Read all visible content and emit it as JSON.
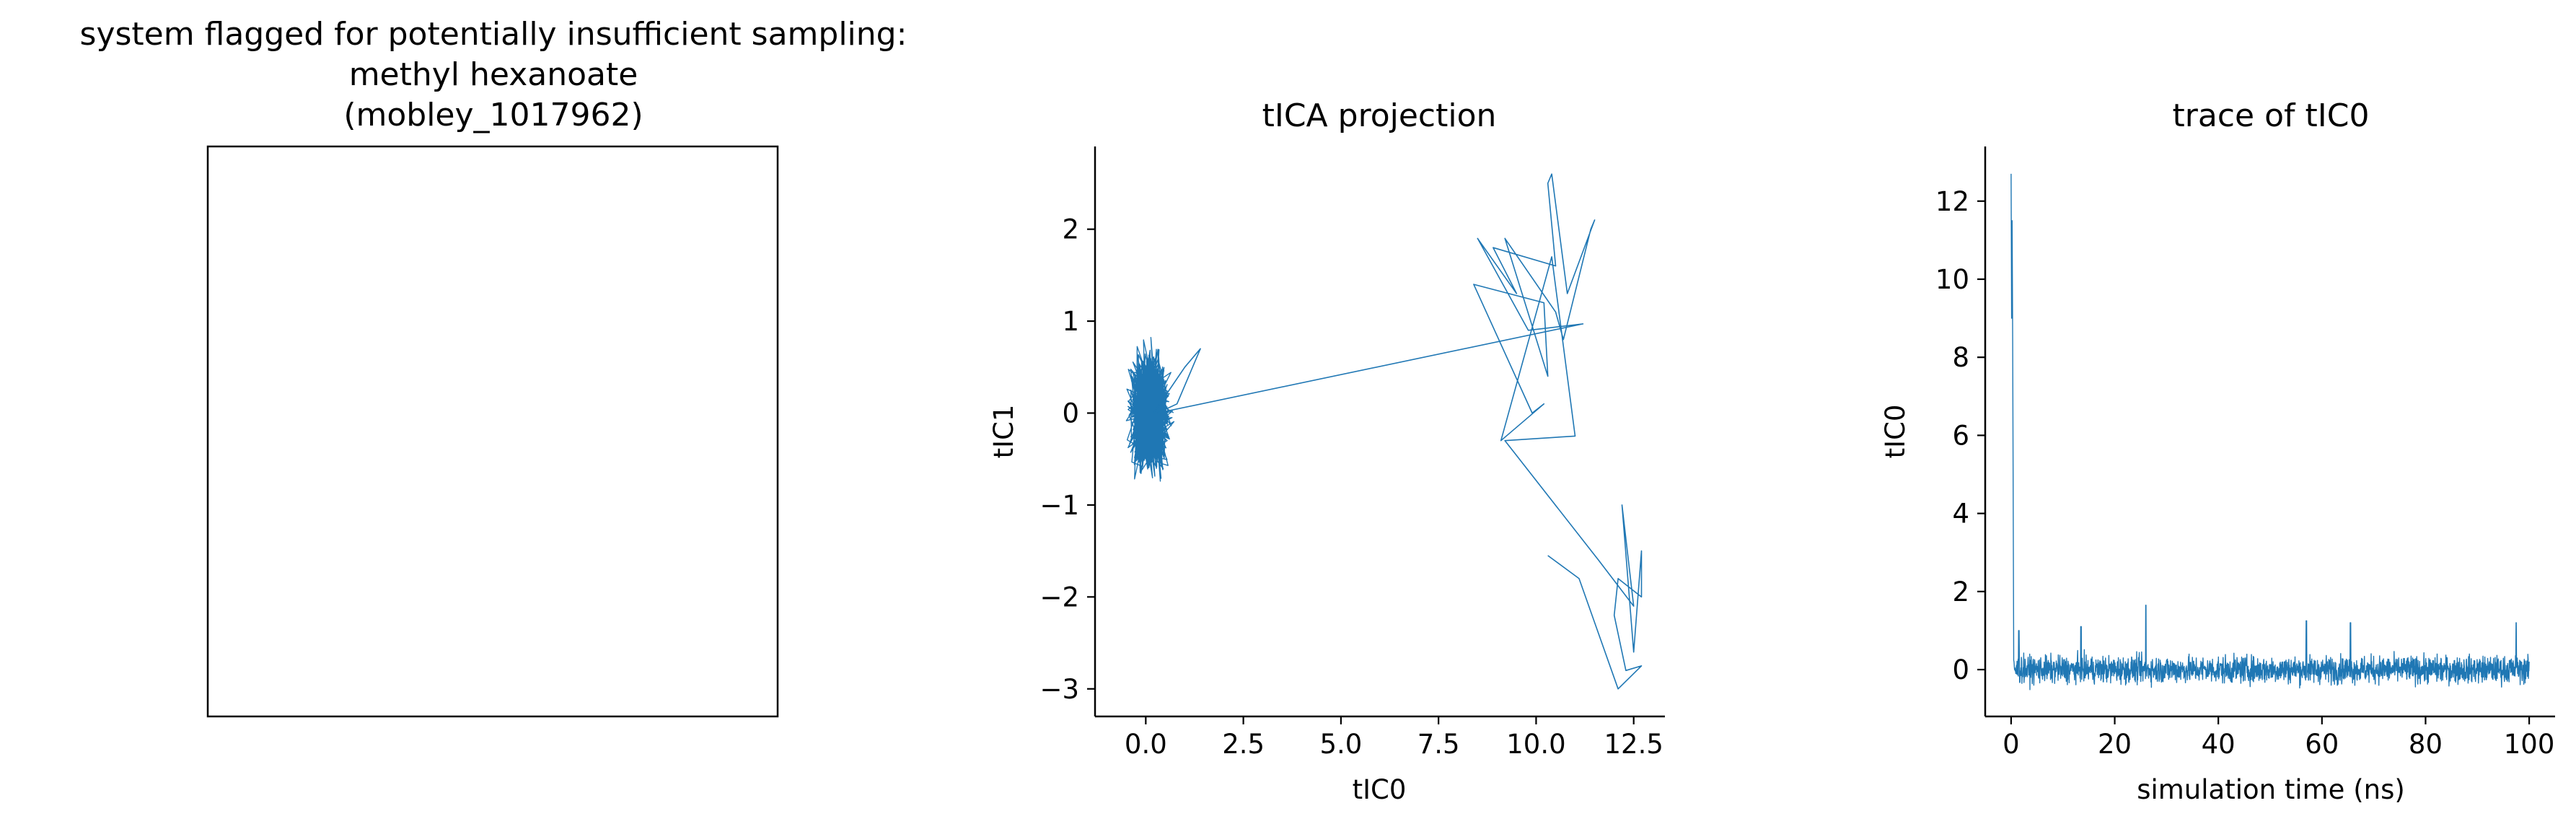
{
  "figure": {
    "panel1": {
      "title_lines": [
        "system flagged for potentially insufficient sampling:",
        "methyl hexanoate",
        "(mobley_1017962)"
      ]
    }
  },
  "chart_data": [
    {
      "type": "image",
      "title": "system flagged for potentially insufficient sampling:\nmethyl hexanoate\n(mobley_1017962)",
      "content": "blank panel (no axes ticks)"
    },
    {
      "type": "line",
      "title": "tICA projection",
      "xlabel": "tIC0",
      "ylabel": "tIC1",
      "xlim": [
        -1.3,
        13.3
      ],
      "ylim": [
        -3.3,
        2.9
      ],
      "xticks": [
        0.0,
        2.5,
        5.0,
        7.5,
        10.0,
        12.5
      ],
      "xtick_labels": [
        "0.0",
        "2.5",
        "5.0",
        "7.5",
        "10.0",
        "12.5"
      ],
      "yticks": [
        -3,
        -2,
        -1,
        0,
        1,
        2
      ],
      "ytick_labels": [
        "−3",
        "−2",
        "−1",
        "0",
        "1",
        "2"
      ],
      "color": "#1f77b4",
      "cluster": {
        "center": [
          0.1,
          0.0
        ],
        "x_spread": [
          -0.6,
          0.9
        ],
        "y_spread": [
          -0.9,
          0.85
        ],
        "n_points": 1500
      },
      "points": [
        [
          0.2,
          0.0
        ],
        [
          1.0,
          0.5
        ],
        [
          1.4,
          0.7
        ],
        [
          0.8,
          0.1
        ],
        [
          0.3,
          0.0
        ],
        [
          11.2,
          0.97
        ],
        [
          9.8,
          0.9
        ],
        [
          8.5,
          1.9
        ],
        [
          9.5,
          1.3
        ],
        [
          8.9,
          1.8
        ],
        [
          10.5,
          1.6
        ],
        [
          10.3,
          2.5
        ],
        [
          10.4,
          2.6
        ],
        [
          10.8,
          1.3
        ],
        [
          11.5,
          2.1
        ],
        [
          11.4,
          2.0
        ],
        [
          10.7,
          0.8
        ],
        [
          10.5,
          1.1
        ],
        [
          9.2,
          1.9
        ],
        [
          10.3,
          0.4
        ],
        [
          10.2,
          1.2
        ],
        [
          8.4,
          1.4
        ],
        [
          9.9,
          0.0
        ],
        [
          10.2,
          0.1
        ],
        [
          9.1,
          -0.3
        ],
        [
          10.4,
          1.7
        ],
        [
          11.0,
          -0.25
        ],
        [
          9.2,
          -0.3
        ],
        [
          11.6,
          -1.6
        ],
        [
          12.5,
          -2.1
        ],
        [
          12.2,
          -1.0
        ],
        [
          12.5,
          -2.6
        ],
        [
          12.7,
          -1.5
        ],
        [
          12.7,
          -2.0
        ],
        [
          12.1,
          -1.8
        ],
        [
          12.0,
          -2.2
        ],
        [
          12.3,
          -2.8
        ],
        [
          12.7,
          -2.75
        ],
        [
          12.1,
          -3.0
        ],
        [
          11.1,
          -1.8
        ],
        [
          10.3,
          -1.55
        ]
      ]
    },
    {
      "type": "line",
      "title": "trace of tIC0",
      "xlabel": "simulation time (ns)",
      "ylabel": "tIC0",
      "xlim": [
        -5,
        105
      ],
      "ylim": [
        -1.2,
        13.4
      ],
      "xticks": [
        0,
        20,
        40,
        60,
        80,
        100
      ],
      "xtick_labels": [
        "0",
        "20",
        "40",
        "60",
        "80",
        "100"
      ],
      "yticks": [
        0,
        2,
        4,
        6,
        8,
        10,
        12
      ],
      "ytick_labels": [
        "0",
        "2",
        "4",
        "6",
        "8",
        "10",
        "12"
      ],
      "color": "#1f77b4",
      "initial_spikes": [
        [
          0.0,
          12.7
        ],
        [
          0.1,
          9.0
        ],
        [
          0.2,
          11.5
        ],
        [
          0.3,
          8.4
        ],
        [
          0.5,
          0.4
        ]
      ],
      "baseline": {
        "mean": 0.0,
        "range": [
          -0.6,
          0.9
        ],
        "n_points": 2000,
        "x_range": [
          0.5,
          100
        ]
      },
      "notable_peaks": [
        [
          1.5,
          1.0
        ],
        [
          26,
          1.65
        ],
        [
          13.5,
          1.1
        ],
        [
          57,
          1.25
        ],
        [
          65.5,
          1.2
        ],
        [
          97.5,
          1.2
        ]
      ]
    }
  ]
}
